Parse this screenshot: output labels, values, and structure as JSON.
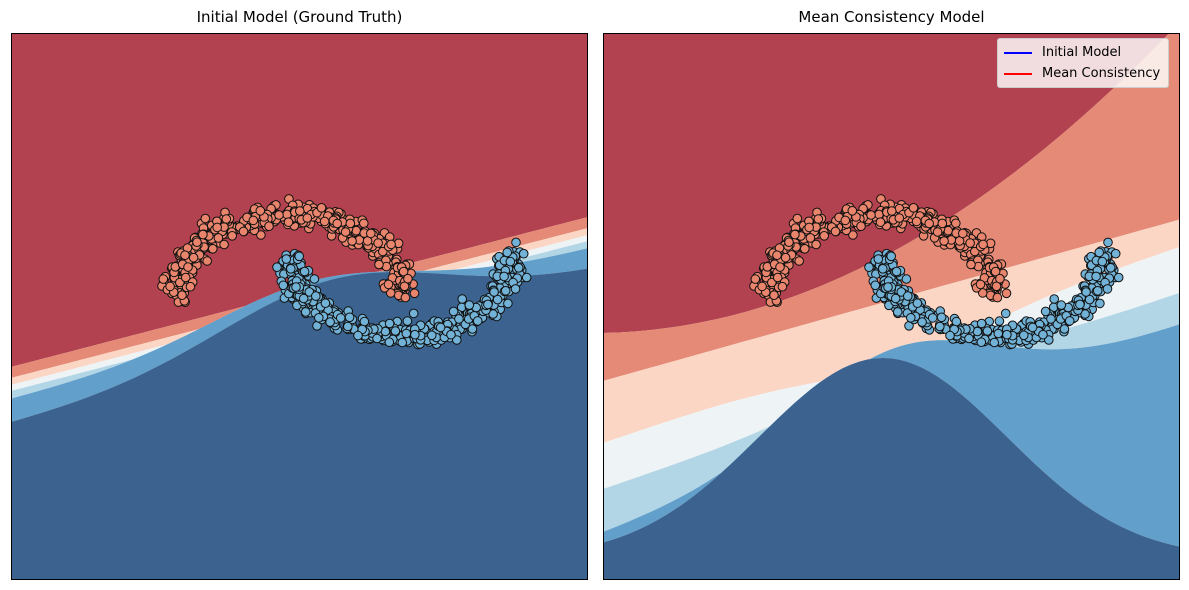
{
  "chart_data": [
    {
      "type": "contour",
      "title": "Initial Model (Ground Truth)",
      "xlabel": "",
      "ylabel": "",
      "axes_ticks": false,
      "grid": false,
      "band_colors": [
        "#b2424f",
        "#e48a76",
        "#fbd6c4",
        "#eef3f6",
        "#b3d6e6",
        "#62a0cb",
        "#3c638f"
      ],
      "class_colors": {
        "class_0": "#e9856c",
        "class_1": "#72b2d6"
      },
      "points": "two interleaving half-moons with noise",
      "legend": null
    },
    {
      "type": "contour",
      "title": "Mean Consistency Model",
      "xlabel": "",
      "ylabel": "",
      "axes_ticks": false,
      "grid": false,
      "band_colors": [
        "#b2424f",
        "#e48a76",
        "#fbd6c4",
        "#eef3f6",
        "#b3d6e6",
        "#62a0cb",
        "#3c638f"
      ],
      "class_colors": {
        "class_0": "#e9856c",
        "class_1": "#72b2d6"
      },
      "points": "two interleaving half-moons with noise",
      "legend": {
        "placement": "top-right",
        "entries": [
          {
            "label": "Initial Model",
            "color": "#0000ff"
          },
          {
            "label": "Mean Consistency",
            "color": "#ff0000"
          }
        ]
      }
    }
  ]
}
